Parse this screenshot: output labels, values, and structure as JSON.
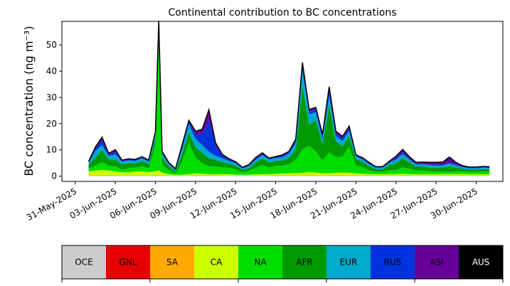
{
  "chart_data": {
    "type": "area",
    "stacked": true,
    "title": "Continental contribution to BC concentrations",
    "ylabel": "BC concentration (ng m⁻³)",
    "xlabel": "",
    "x_ticks": [
      "31-May-2025",
      "03-Jun-2025",
      "06-Jun-2025",
      "09-Jun-2025",
      "12-Jun-2025",
      "15-Jun-2025",
      "18-Jun-2025",
      "21-Jun-2025",
      "24-Jun-2025",
      "27-Jun-2025",
      "30-Jun-2025"
    ],
    "y_ticks": [
      0,
      10,
      20,
      30,
      40,
      50
    ],
    "xlim": [
      "2025-05-30",
      "2025-07-02"
    ],
    "ylim": [
      -2,
      59
    ],
    "x": [
      "2025-06-01",
      "2025-06-01T12",
      "2025-06-02",
      "2025-06-02T12",
      "2025-06-03",
      "2025-06-03T12",
      "2025-06-04",
      "2025-06-04T12",
      "2025-06-05",
      "2025-06-05T12",
      "2025-06-06",
      "2025-06-06T06",
      "2025-06-06T12",
      "2025-06-07",
      "2025-06-07T12",
      "2025-06-08",
      "2025-06-08T12",
      "2025-06-09",
      "2025-06-09T12",
      "2025-06-10",
      "2025-06-10T12",
      "2025-06-11",
      "2025-06-11T12",
      "2025-06-12",
      "2025-06-12T12",
      "2025-06-13",
      "2025-06-13T12",
      "2025-06-14",
      "2025-06-14T12",
      "2025-06-15",
      "2025-06-15T12",
      "2025-06-16",
      "2025-06-16T12",
      "2025-06-17",
      "2025-06-17T12",
      "2025-06-18",
      "2025-06-18T12",
      "2025-06-19",
      "2025-06-19T12",
      "2025-06-20",
      "2025-06-20T12",
      "2025-06-21",
      "2025-06-21T12",
      "2025-06-22",
      "2025-06-22T12",
      "2025-06-23",
      "2025-06-23T12",
      "2025-06-24",
      "2025-06-24T12",
      "2025-06-25",
      "2025-06-25T12",
      "2025-06-26",
      "2025-06-26T12",
      "2025-06-27",
      "2025-06-27T12",
      "2025-06-28",
      "2025-06-28T12",
      "2025-06-29",
      "2025-06-29T12",
      "2025-06-30",
      "2025-06-30T12",
      "2025-07-01"
    ],
    "series": [
      {
        "name": "OCE",
        "color": "#cccccc",
        "values": [
          0.1,
          0.1,
          0.1,
          0.1,
          0.1,
          0.1,
          0.1,
          0.1,
          0.1,
          0.1,
          0.1,
          0.1,
          0.1,
          0.1,
          0.1,
          0.1,
          0.1,
          0.1,
          0.1,
          0.1,
          0.1,
          0.1,
          0.1,
          0.1,
          0.1,
          0.1,
          0.1,
          0.1,
          0.1,
          0.1,
          0.1,
          0.1,
          0.1,
          0.1,
          0.1,
          0.1,
          0.1,
          0.1,
          0.1,
          0.1,
          0.1,
          0.1,
          0.1,
          0.1,
          0.1,
          0.1,
          0.1,
          0.1,
          0.1,
          0.1,
          0.1,
          0.1,
          0.1,
          0.1,
          0.1,
          0.1,
          0.1,
          0.1,
          0.1,
          0.1,
          0.1,
          0.1
        ]
      },
      {
        "name": "GNL",
        "color": "#e60000",
        "values": [
          0,
          0,
          0,
          0,
          0,
          0,
          0,
          0,
          0,
          0,
          0,
          0,
          0,
          0,
          0,
          0,
          0,
          0,
          0,
          0,
          0,
          0,
          0,
          0,
          0,
          0,
          0,
          0,
          0,
          0,
          0,
          0,
          0,
          0,
          0,
          0,
          0,
          0,
          0,
          0,
          0,
          0,
          0,
          0,
          0,
          0,
          0,
          0,
          0,
          0,
          0,
          0,
          0,
          0,
          0,
          0,
          0,
          0,
          0,
          0,
          0,
          0
        ]
      },
      {
        "name": "SA",
        "color": "#ffaa00",
        "values": [
          0.2,
          0.2,
          0.3,
          0.3,
          0.2,
          0.2,
          0.2,
          0.2,
          0.2,
          0.2,
          0.3,
          0.3,
          0.2,
          0.2,
          0.1,
          0.1,
          0.2,
          0.2,
          0.2,
          0.2,
          0.2,
          0.2,
          0.1,
          0.1,
          0.1,
          0.1,
          0.1,
          0.1,
          0.2,
          0.2,
          0.2,
          0.2,
          0.2,
          0.2,
          0.3,
          0.3,
          0.2,
          0.2,
          0.3,
          0.3,
          0.2,
          0.2,
          0.2,
          0.2,
          0.2,
          0.2,
          0.2,
          0.2,
          0.2,
          0.2,
          0.2,
          0.2,
          0.2,
          0.2,
          0.2,
          0.2,
          0.2,
          0.2,
          0.2,
          0.2,
          0.2,
          0.2
        ]
      },
      {
        "name": "CA",
        "color": "#ccff00",
        "values": [
          1.5,
          1.8,
          2.0,
          1.8,
          1.5,
          1.2,
          1.2,
          1.5,
          1.5,
          1.2,
          1.5,
          1.8,
          1.0,
          0.5,
          0.3,
          0.3,
          0.5,
          0.8,
          0.6,
          0.5,
          0.4,
          0.5,
          0.6,
          0.4,
          0.3,
          0.3,
          0.5,
          0.6,
          0.5,
          0.6,
          0.7,
          0.8,
          0.9,
          1.0,
          1.2,
          1.0,
          0.8,
          0.8,
          0.9,
          1.0,
          1.0,
          0.8,
          0.6,
          0.5,
          0.4,
          0.4,
          0.5,
          0.5,
          0.6,
          0.5,
          0.4,
          0.4,
          0.4,
          0.4,
          0.5,
          0.5,
          0.5,
          0.5,
          0.4,
          0.4,
          0.4,
          0.4
        ]
      },
      {
        "name": "NA",
        "color": "#00dd00",
        "values": [
          1.0,
          2.0,
          3.0,
          1.8,
          2.0,
          1.0,
          1.5,
          1.5,
          2.0,
          1.5,
          10.0,
          48.0,
          3.0,
          1.5,
          0.5,
          5.0,
          12.0,
          6.0,
          4.0,
          3.0,
          3.0,
          2.5,
          2.5,
          2.0,
          1.0,
          1.5,
          2.5,
          3.5,
          2.5,
          3.0,
          3.0,
          3.5,
          5.0,
          9.0,
          10.0,
          8.0,
          5.0,
          8.0,
          6.0,
          6.0,
          10.0,
          3.0,
          2.5,
          1.5,
          1.0,
          1.0,
          1.5,
          1.5,
          2.5,
          2.0,
          1.5,
          1.5,
          1.2,
          1.0,
          1.0,
          1.0,
          1.0,
          1.0,
          1.0,
          1.0,
          1.0,
          1.2
        ]
      },
      {
        "name": "AFR",
        "color": "#009900",
        "values": [
          1.5,
          3.0,
          4.5,
          2.5,
          2.5,
          2.0,
          2.0,
          1.5,
          2.0,
          1.5,
          2.5,
          5.5,
          3.0,
          1.5,
          0.8,
          3.0,
          4.0,
          4.0,
          4.0,
          3.0,
          2.5,
          2.0,
          1.5,
          1.5,
          1.0,
          1.0,
          2.0,
          2.5,
          2.0,
          2.0,
          2.0,
          2.5,
          4.0,
          24.0,
          8.0,
          12.0,
          6.0,
          18.0,
          6.0,
          4.0,
          4.0,
          2.5,
          2.0,
          1.5,
          1.0,
          1.0,
          2.0,
          2.5,
          3.5,
          2.5,
          1.5,
          1.5,
          1.5,
          1.5,
          1.5,
          2.0,
          1.5,
          1.0,
          0.8,
          0.8,
          1.0,
          0.8
        ]
      },
      {
        "name": "EUR",
        "color": "#00aacc",
        "values": [
          0.8,
          2.5,
          2.0,
          1.2,
          2.0,
          1.0,
          1.0,
          1.0,
          1.0,
          1.0,
          1.5,
          2.0,
          1.2,
          0.8,
          0.6,
          2.0,
          3.0,
          3.0,
          3.0,
          2.5,
          1.5,
          1.5,
          1.0,
          0.8,
          0.5,
          0.8,
          1.0,
          1.2,
          1.0,
          1.0,
          1.2,
          1.5,
          2.5,
          6.0,
          4.0,
          3.0,
          2.0,
          3.5,
          2.0,
          2.0,
          2.0,
          1.0,
          1.0,
          0.8,
          0.5,
          0.5,
          0.8,
          1.5,
          1.5,
          1.0,
          0.8,
          0.8,
          0.8,
          0.8,
          0.8,
          1.0,
          0.8,
          0.6,
          0.5,
          0.5,
          0.5,
          0.4
        ]
      },
      {
        "name": "RUS",
        "color": "#0033dd",
        "values": [
          0.3,
          1.0,
          1.5,
          0.5,
          1.0,
          0.3,
          0.3,
          0.3,
          0.3,
          0.3,
          0.5,
          1.0,
          0.5,
          0.3,
          0.2,
          1.0,
          1.0,
          2.0,
          4.0,
          12.0,
          4.0,
          1.0,
          0.5,
          0.3,
          0.2,
          0.3,
          0.5,
          0.5,
          0.3,
          0.3,
          0.5,
          0.5,
          1.0,
          2.0,
          1.0,
          1.0,
          1.0,
          2.0,
          1.0,
          1.0,
          1.0,
          0.3,
          0.3,
          0.3,
          0.2,
          0.2,
          0.3,
          0.5,
          0.8,
          0.5,
          0.3,
          0.3,
          0.3,
          0.3,
          0.3,
          0.5,
          0.3,
          0.2,
          0.2,
          0.2,
          0.2,
          0.2
        ]
      },
      {
        "name": "ASI",
        "color": "#660099",
        "values": [
          0.2,
          0.5,
          1.5,
          0.5,
          0.8,
          0.3,
          0.3,
          0.3,
          0.3,
          0.3,
          0.5,
          0.5,
          0.5,
          0.3,
          0.2,
          0.5,
          0.5,
          1.0,
          2.0,
          4.0,
          1.0,
          0.5,
          0.4,
          0.3,
          0.2,
          0.3,
          0.4,
          0.4,
          0.3,
          0.3,
          0.4,
          0.4,
          0.5,
          1.0,
          0.8,
          0.8,
          0.8,
          1.5,
          0.8,
          0.8,
          0.8,
          0.3,
          0.3,
          0.3,
          0.2,
          0.2,
          0.3,
          0.8,
          1.0,
          0.6,
          0.5,
          0.6,
          0.8,
          1.0,
          1.0,
          2.0,
          0.8,
          0.4,
          0.3,
          0.3,
          0.3,
          0.3
        ]
      },
      {
        "name": "AUS",
        "color": "#000000",
        "values": [
          0,
          0,
          0,
          0,
          0,
          0,
          0,
          0,
          0,
          0,
          0,
          0,
          0,
          0,
          0,
          0,
          0,
          0,
          0,
          0,
          0,
          0,
          0,
          0,
          0,
          0,
          0,
          0,
          0,
          0,
          0,
          0,
          0,
          0,
          0,
          0,
          0,
          0,
          0,
          0,
          0,
          0,
          0,
          0,
          0,
          0,
          0,
          0,
          0,
          0,
          0,
          0,
          0,
          0,
          0,
          0,
          0,
          0,
          0,
          0,
          0,
          0
        ]
      }
    ],
    "legend": {
      "placement": "bottom",
      "items": [
        {
          "label": "OCE",
          "color": "#cccccc",
          "text_color": "#000000"
        },
        {
          "label": "GNL",
          "color": "#e60000",
          "text_color": "#000000"
        },
        {
          "label": "SA",
          "color": "#ffaa00",
          "text_color": "#000000"
        },
        {
          "label": "CA",
          "color": "#ccff00",
          "text_color": "#000000"
        },
        {
          "label": "NA",
          "color": "#00dd00",
          "text_color": "#000000"
        },
        {
          "label": "AFR",
          "color": "#009900",
          "text_color": "#000000"
        },
        {
          "label": "EUR",
          "color": "#00aacc",
          "text_color": "#000000"
        },
        {
          "label": "RUS",
          "color": "#0033dd",
          "text_color": "#000000"
        },
        {
          "label": "ASI",
          "color": "#660099",
          "text_color": "#000000"
        },
        {
          "label": "AUS",
          "color": "#000000",
          "text_color": "#ffffff"
        }
      ]
    },
    "total_line_color": "#000000",
    "grid": false
  }
}
